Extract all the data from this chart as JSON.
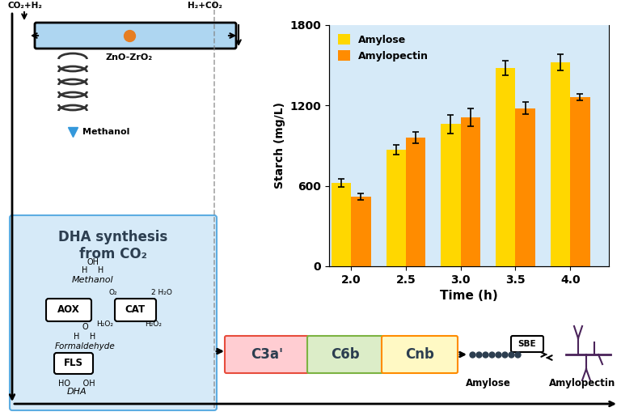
{
  "bar_times": [
    2.0,
    2.5,
    3.0,
    3.5,
    4.0
  ],
  "amylose_values": [
    620,
    870,
    1060,
    1480,
    1520
  ],
  "amylopectin_values": [
    520,
    960,
    1110,
    1180,
    1260
  ],
  "amylose_errors": [
    30,
    35,
    70,
    55,
    60
  ],
  "amylopectin_errors": [
    25,
    40,
    65,
    45,
    25
  ],
  "amylose_color": "#FFD700",
  "amylopectin_color": "#FF8C00",
  "bar_width": 0.18,
  "ylim": [
    0,
    1800
  ],
  "yticks": [
    0,
    600,
    1200,
    1800
  ],
  "chart_bg": "#D6EAF8",
  "ylabel": "Starch (mg/L)",
  "ylabel2": "DHA synthesis\nfrom CO₂",
  "xlabel": "Time (h)",
  "title": "",
  "bg_color": "#ffffff",
  "light_blue": "#D6EAF8",
  "box_pink": "#FFB6C1",
  "box_green": "#C8E6C9",
  "box_yellow": "#FFF9C4",
  "box_orange_border": "#FF8C00",
  "enzyme_box_bg": "#FFFFFF",
  "dha_box_bg": "#D6EAF8"
}
